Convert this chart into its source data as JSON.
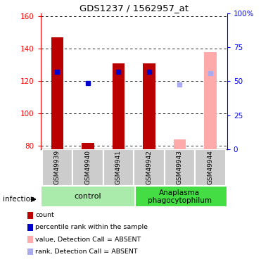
{
  "title": "GDS1237 / 1562957_at",
  "samples": [
    "GSM49939",
    "GSM49940",
    "GSM49941",
    "GSM49942",
    "GSM49943",
    "GSM49944"
  ],
  "bar_values": [
    147,
    82,
    131,
    131,
    84,
    138
  ],
  "bar_absent": [
    false,
    false,
    false,
    false,
    true,
    true
  ],
  "rank_values": [
    126,
    119,
    126,
    126,
    118,
    125
  ],
  "rank_absent": [
    false,
    false,
    false,
    false,
    true,
    true
  ],
  "ylim_left": [
    78,
    162
  ],
  "ylim_right": [
    0,
    100
  ],
  "y_ticks_left": [
    80,
    100,
    120,
    140,
    160
  ],
  "y_ticks_right": [
    0,
    25,
    50,
    75,
    100
  ],
  "y_tick_labels_right": [
    "0",
    "25",
    "50",
    "75",
    "100%"
  ],
  "bar_color_present": "#bb0000",
  "bar_color_absent": "#ffaaaa",
  "rank_color_present": "#0000cc",
  "rank_color_absent": "#aaaaee",
  "bar_width": 0.4,
  "rank_marker_size": 5,
  "control_label": "control",
  "anaplasma_label": "Anaplasma\nphagocytophilum",
  "infection_label": "infection",
  "legend_items": [
    "count",
    "percentile rank within the sample",
    "value, Detection Call = ABSENT",
    "rank, Detection Call = ABSENT"
  ],
  "group_bg_color": "#cccccc",
  "group_label_bg_control": "#aaeaaa",
  "group_label_bg_anaplasma": "#44dd44",
  "grid_color": "#000000"
}
